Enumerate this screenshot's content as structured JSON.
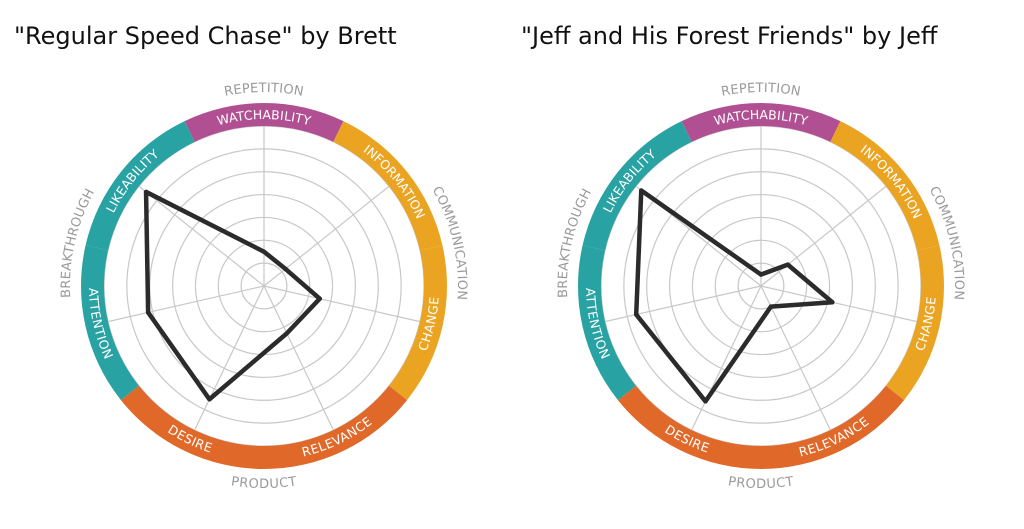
{
  "chart_data": [
    {
      "type": "radar",
      "title": "\"Regular Speed Chase\" by Brett",
      "axes": [
        "WATCHABILITY",
        "INFORMATION",
        "CHANGE",
        "RELEVANCE",
        "DESIRE",
        "ATTENTION",
        "LIKEABILITY"
      ],
      "groups": [
        "REPETITION",
        "COMMUNICATION",
        "PRODUCT",
        "BREAKTHROUGH"
      ],
      "range": [
        0,
        7
      ],
      "rings": 7,
      "values": [
        1.5,
        1.2,
        2.5,
        2.3,
        5.5,
        5.2,
        6.6
      ]
    },
    {
      "type": "radar",
      "title": "\"Jeff and His Forest Friends\" by Jeff",
      "axes": [
        "WATCHABILITY",
        "INFORMATION",
        "CHANGE",
        "RELEVANCE",
        "DESIRE",
        "ATTENTION",
        "LIKEABILITY"
      ],
      "groups": [
        "REPETITION",
        "COMMUNICATION",
        "PRODUCT",
        "BREAKTHROUGH"
      ],
      "range": [
        0,
        7
      ],
      "rings": 7,
      "values": [
        0.5,
        1.5,
        3.2,
        1.0,
        5.6,
        5.6,
        6.7
      ]
    }
  ],
  "bands": [
    {
      "name": "WATCHABILITY",
      "color": "#b14f93",
      "group": "REPETITION"
    },
    {
      "name": "INFORMATION",
      "color": "#eba422",
      "group": "COMMUNICATION"
    },
    {
      "name": "CHANGE",
      "color": "#eba422",
      "group": "COMMUNICATION"
    },
    {
      "name": "RELEVANCE",
      "color": "#e06828",
      "group": "PRODUCT"
    },
    {
      "name": "DESIRE",
      "color": "#e06828",
      "group": "PRODUCT"
    },
    {
      "name": "ATTENTION",
      "color": "#28a2a3",
      "group": "BREAKTHROUGH"
    },
    {
      "name": "LIKEABILITY",
      "color": "#28a2a3",
      "group": "BREAKTHROUGH"
    }
  ],
  "colors": {
    "grid": "#c8c8c8",
    "line": "#2b2b2b",
    "group_label": "#9a9a9a"
  }
}
